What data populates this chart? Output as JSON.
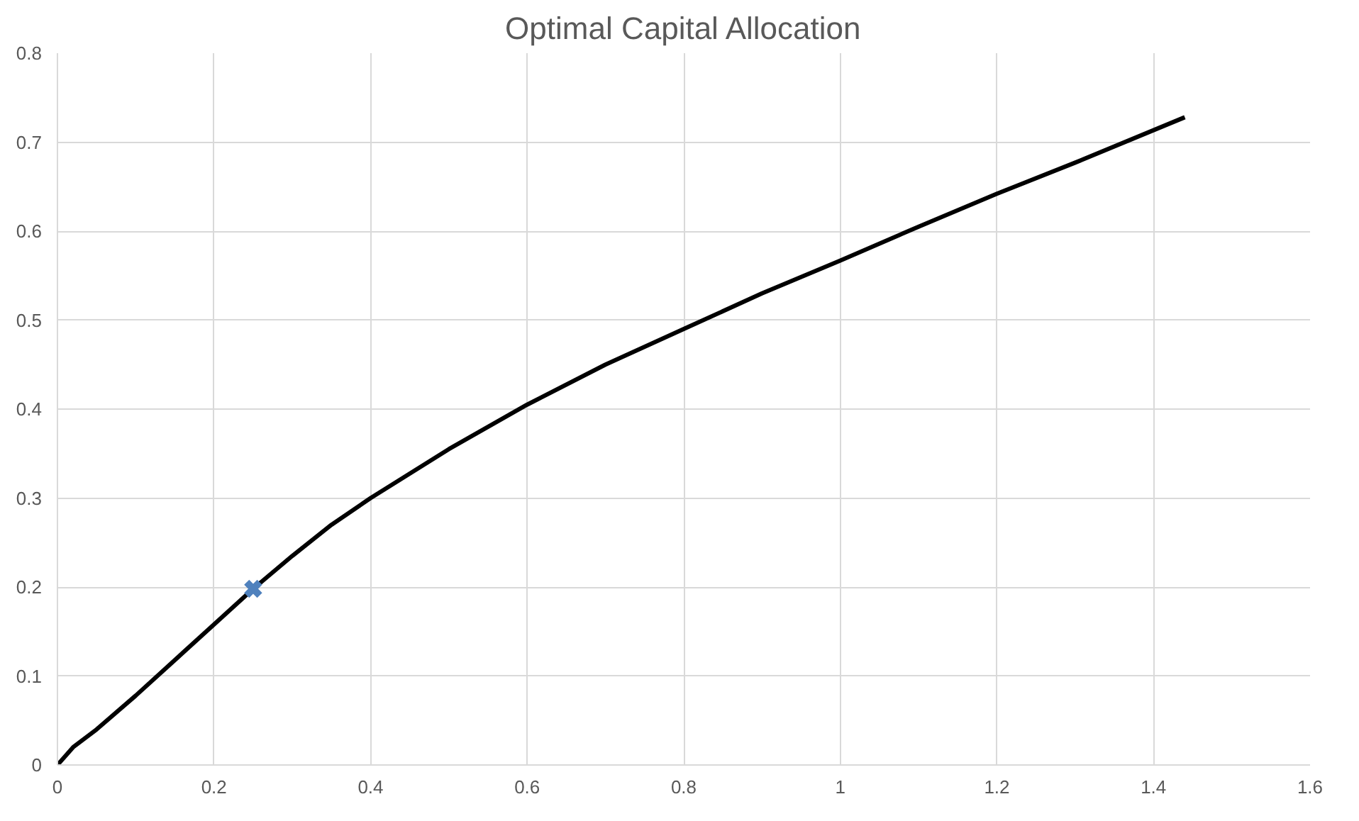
{
  "chart_data": {
    "type": "line",
    "title": "Optimal Capital Allocation",
    "xlim": [
      0,
      1.6
    ],
    "xticks": [
      0,
      0.2,
      0.4,
      0.6,
      0.8,
      1,
      1.2,
      1.4,
      1.6
    ],
    "ylim": [
      0,
      0.8
    ],
    "yticks": [
      0,
      0.1,
      0.2,
      0.3,
      0.4,
      0.5,
      0.6,
      0.7,
      0.8
    ],
    "grid": true,
    "series": [
      {
        "color": "#000000",
        "marker": "none",
        "x": [
          0,
          0.02,
          0.05,
          0.1,
          0.2,
          0.25,
          0.3,
          0.35,
          0.4,
          0.5,
          0.6,
          0.7,
          0.8,
          0.9,
          1.0,
          1.1,
          1.2,
          1.3,
          1.44
        ],
        "values": [
          0,
          0.02,
          0.04,
          0.078,
          0.158,
          0.198,
          0.235,
          0.27,
          0.3,
          0.355,
          0.405,
          0.45,
          0.49,
          0.53,
          0.567,
          0.605,
          0.642,
          0.677,
          0.728
        ]
      },
      {
        "type": "scatter",
        "color": "#4f81bd",
        "marker": "cross",
        "x": [
          0.25
        ],
        "values": [
          0.198
        ]
      }
    ]
  }
}
